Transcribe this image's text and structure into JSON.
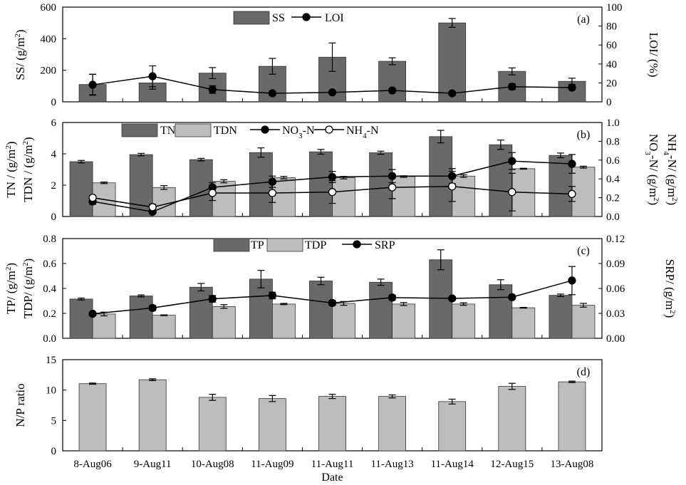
{
  "chart_data": [
    {
      "id": "a",
      "type": "bar",
      "panel_label": "(a)",
      "categories": [
        "8-Aug06",
        "9-Aug11",
        "10-Aug08",
        "11-Aug09",
        "11-Aug11",
        "11-Aug13",
        "11-Aug14",
        "12-Aug15",
        "13-Aug08"
      ],
      "ylabel_left": "SS/ (g/m2)",
      "ylabel_right": "LOI/ (%)",
      "ylim_left": [
        0,
        600
      ],
      "yticks_left": [
        "0",
        "200",
        "400",
        "600"
      ],
      "ylim_right": [
        0,
        100
      ],
      "yticks_right": [
        "0",
        "20",
        "40",
        "60",
        "80",
        "100"
      ],
      "legend": [
        {
          "label": "SS",
          "kind": "bar",
          "color": "#696969"
        },
        {
          "label": "LOI",
          "kind": "line-filled"
        }
      ],
      "bars": [
        {
          "name": "SS",
          "color": "#696969",
          "values": [
            110,
            120,
            182,
            225,
            283,
            257,
            500,
            193,
            130
          ],
          "errors": [
            65,
            40,
            35,
            50,
            90,
            22,
            28,
            22,
            20
          ]
        }
      ],
      "lines": [
        {
          "name": "LOI",
          "marker": "filled",
          "axis": "right",
          "values": [
            18,
            27,
            13,
            9,
            10,
            12,
            9,
            16,
            15
          ],
          "errors": [
            11,
            11,
            4,
            2,
            2,
            2,
            1,
            3,
            2
          ]
        }
      ]
    },
    {
      "id": "b",
      "type": "bar",
      "panel_label": "(b)",
      "categories": [
        "8-Aug06",
        "9-Aug11",
        "10-Aug08",
        "11-Aug09",
        "11-Aug11",
        "11-Aug13",
        "11-Aug14",
        "12-Aug15",
        "13-Aug08"
      ],
      "ylabel_left": "TN / (g/m2) TDN / (g/m2)",
      "ylabel_right": "NO3-N/ (g/m2) NH4-N/ (g/m2)",
      "ylim_left": [
        0,
        6
      ],
      "yticks_left": [
        "0",
        "2",
        "4",
        "6"
      ],
      "ylim_right": [
        0,
        1.0
      ],
      "yticks_right": [
        "0.0",
        "0.2",
        "0.4",
        "0.6",
        "0.8",
        "1.0"
      ],
      "legend": [
        {
          "label": "TN",
          "kind": "bar",
          "color": "#696969"
        },
        {
          "label": "TDN",
          "kind": "bar",
          "color": "#bdbdbd"
        },
        {
          "label": "NO3-N",
          "kind": "line-filled"
        },
        {
          "label": "NH4-N",
          "kind": "line-open"
        }
      ],
      "bars": [
        {
          "name": "TN",
          "color": "#696969",
          "values": [
            3.5,
            3.95,
            3.63,
            4.08,
            4.13,
            4.07,
            5.1,
            4.58,
            3.9
          ],
          "errors": [
            0.08,
            0.08,
            0.08,
            0.3,
            0.15,
            0.1,
            0.4,
            0.3,
            0.15
          ]
        },
        {
          "name": "TDN",
          "color": "#bdbdbd",
          "values": [
            2.15,
            1.85,
            2.25,
            2.48,
            2.48,
            2.55,
            2.58,
            3.05,
            3.15
          ],
          "errors": [
            0.05,
            0.12,
            0.1,
            0.08,
            0.08,
            0.05,
            0.08,
            0.03,
            0.06
          ]
        }
      ],
      "lines": [
        {
          "name": "NO3-N",
          "marker": "filled",
          "axis": "right",
          "values": [
            0.16,
            0.05,
            0.31,
            0.37,
            0.42,
            0.43,
            0.43,
            0.59,
            0.56
          ],
          "errors": [
            0.03,
            0.02,
            0.05,
            0.06,
            0.06,
            0.07,
            0.08,
            0.09,
            0.1
          ]
        },
        {
          "name": "NH4-N",
          "marker": "open",
          "axis": "right",
          "values": [
            0.2,
            0.1,
            0.25,
            0.25,
            0.26,
            0.31,
            0.32,
            0.26,
            0.24
          ],
          "errors": [
            0.02,
            0.03,
            0.08,
            0.1,
            0.12,
            0.12,
            0.16,
            0.2,
            0.08
          ]
        }
      ]
    },
    {
      "id": "c",
      "type": "bar",
      "panel_label": "(c)",
      "categories": [
        "8-Aug06",
        "9-Aug11",
        "10-Aug08",
        "11-Aug09",
        "11-Aug11",
        "11-Aug13",
        "11-Aug14",
        "12-Aug15",
        "13-Aug08"
      ],
      "ylabel_left": "TP/ (g/m2) TDP/ (g/m2)",
      "ylabel_right": "SRP/ (g/m2)",
      "ylim_left": [
        0,
        0.8
      ],
      "yticks_left": [
        "0.0",
        "0.2",
        "0.4",
        "0.6",
        "0.8"
      ],
      "ylim_right": [
        0,
        0.12
      ],
      "yticks_right": [
        "0.00",
        "0.03",
        "0.06",
        "0.09",
        "0.12"
      ],
      "legend": [
        {
          "label": "TP",
          "kind": "bar",
          "color": "#696969"
        },
        {
          "label": "TDP",
          "kind": "bar",
          "color": "#bdbdbd"
        },
        {
          "label": "SRP",
          "kind": "line-filled"
        }
      ],
      "bars": [
        {
          "name": "TP",
          "color": "#696969",
          "values": [
            0.315,
            0.34,
            0.41,
            0.475,
            0.46,
            0.45,
            0.63,
            0.43,
            0.345
          ],
          "errors": [
            0.008,
            0.008,
            0.03,
            0.07,
            0.03,
            0.025,
            0.08,
            0.04,
            0.01
          ]
        },
        {
          "name": "TDP",
          "color": "#bdbdbd",
          "values": [
            0.195,
            0.185,
            0.255,
            0.275,
            0.28,
            0.275,
            0.275,
            0.245,
            0.265
          ],
          "errors": [
            0.015,
            0.003,
            0.015,
            0.005,
            0.015,
            0.012,
            0.01,
            0.003,
            0.015
          ]
        }
      ],
      "lines": [
        {
          "name": "SRP",
          "marker": "filled",
          "axis": "right",
          "values": [
            0.0295,
            0.0365,
            0.0475,
            0.0515,
            0.0425,
            0.049,
            0.048,
            0.0495,
            0.0695
          ],
          "errors": [
            0.001,
            0.003,
            0.004,
            0.004,
            0.003,
            0.003,
            0.002,
            0.002,
            0.017
          ]
        }
      ]
    },
    {
      "id": "d",
      "type": "bar",
      "panel_label": "(d)",
      "categories": [
        "8-Aug06",
        "9-Aug11",
        "10-Aug08",
        "11-Aug09",
        "11-Aug11",
        "11-Aug13",
        "11-Aug14",
        "12-Aug15",
        "13-Aug08"
      ],
      "xlabel": "Date",
      "ylabel_left": "N/P ratio",
      "ylim_left": [
        0,
        15
      ],
      "yticks_left": [
        "0",
        "5",
        "10",
        "15"
      ],
      "bars": [
        {
          "name": "N/P ratio",
          "color": "#bdbdbd",
          "values": [
            11.05,
            11.7,
            8.8,
            8.6,
            8.95,
            8.95,
            8.1,
            10.6,
            11.35
          ],
          "errors": [
            0.1,
            0.15,
            0.5,
            0.5,
            0.35,
            0.25,
            0.4,
            0.5,
            0.12
          ]
        }
      ],
      "lines": []
    }
  ]
}
